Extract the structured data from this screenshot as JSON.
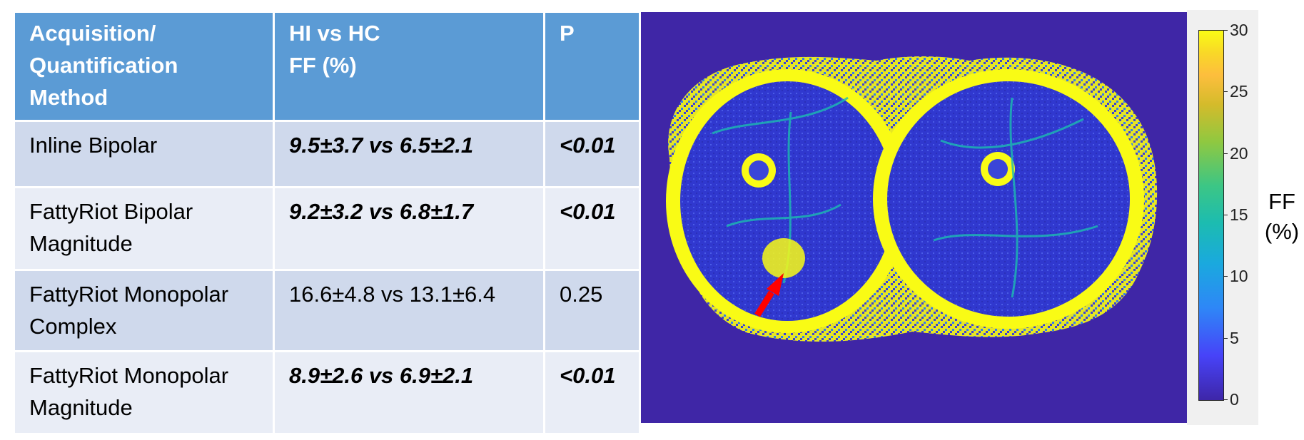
{
  "table": {
    "headers": [
      {
        "line1": "Acquisition/",
        "line2": "Quantification",
        "line3": "Method"
      },
      {
        "line1": "HI vs HC",
        "line2": "FF (%)"
      },
      {
        "line1": "P"
      }
    ],
    "rows": [
      {
        "method_line1": "Inline Bipolar",
        "method_line2": "",
        "ff": "9.5±3.7 vs 6.5±2.1",
        "p": "<0.01",
        "significant": true
      },
      {
        "method_line1": "FattyRiot Bipolar",
        "method_line2": "Magnitude",
        "ff": "9.2±3.2 vs 6.8±1.7",
        "p": "<0.01",
        "significant": true
      },
      {
        "method_line1": "FattyRiot Monopolar",
        "method_line2": "Complex",
        "ff": "16.6±4.8 vs 13.1±6.4",
        "p": "0.25",
        "significant": false
      },
      {
        "method_line1": "FattyRiot Monopolar",
        "method_line2": "Magnitude",
        "ff": "8.9±2.6 vs 6.9±2.1",
        "p": "<0.01",
        "significant": true
      }
    ]
  },
  "colorbar": {
    "title_line1": "FF",
    "title_line2": "(%)",
    "ticks": [
      "30",
      "25",
      "20",
      "15",
      "10",
      "5",
      "0"
    ],
    "min": 0,
    "max": 30,
    "colormap": "parula"
  },
  "image": {
    "background_color": "#3f26a6",
    "fat_color": "#f9fb15",
    "muscle_color": "#3a45d8",
    "arrow_color": "#ff0000"
  }
}
